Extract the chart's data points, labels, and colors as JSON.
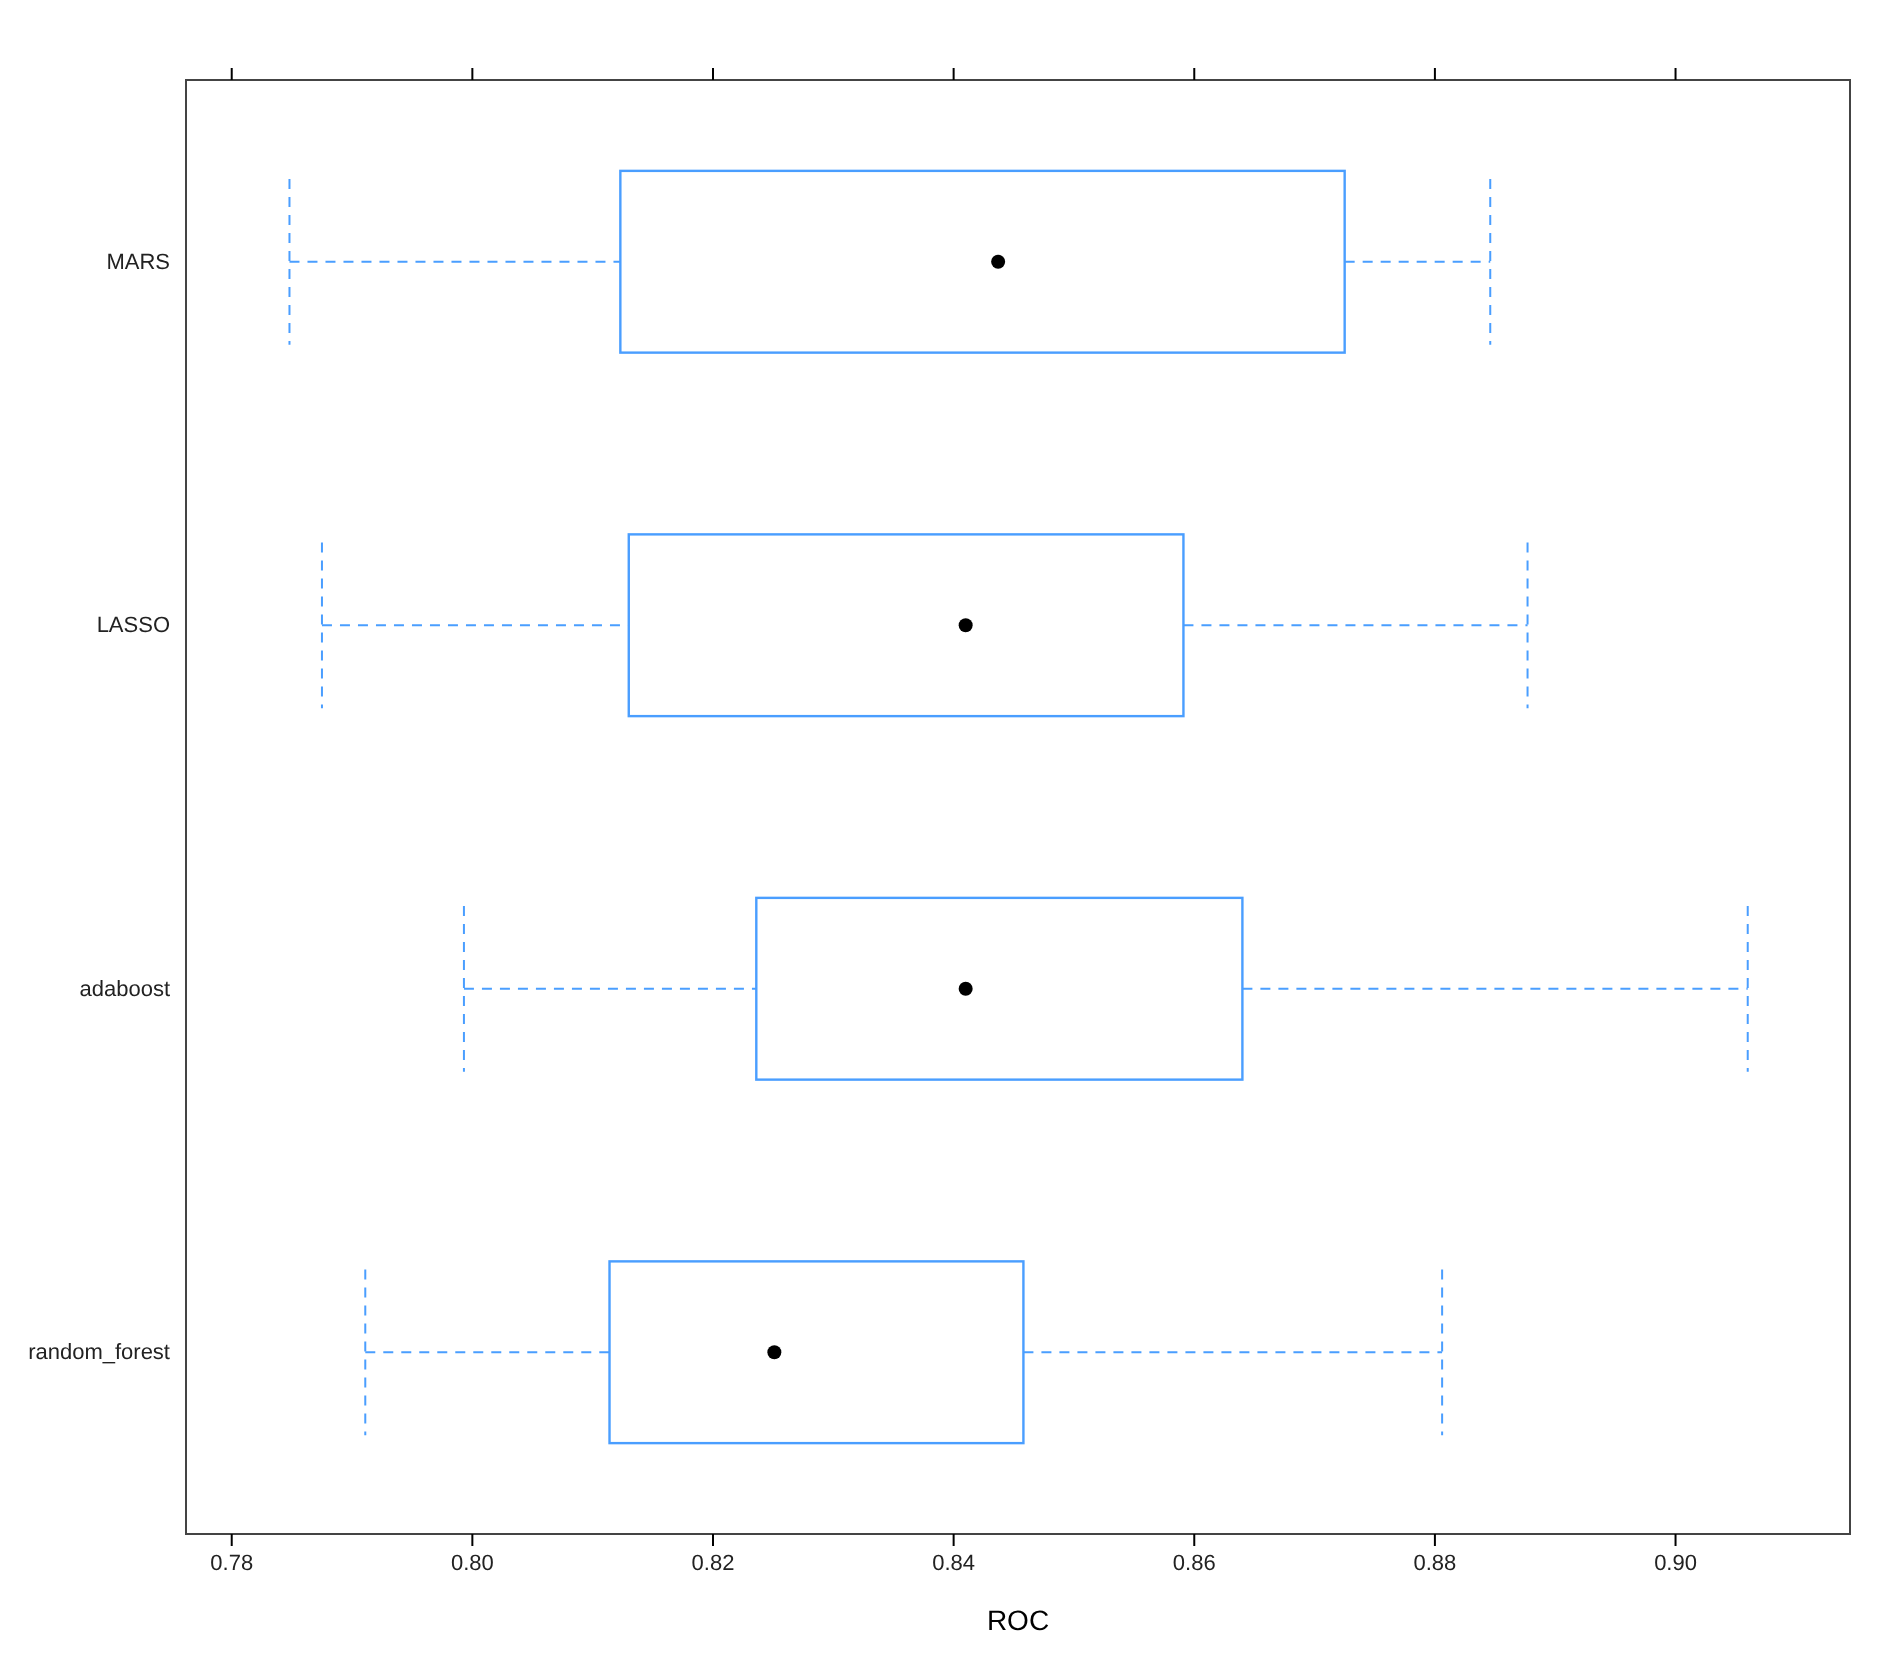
{
  "chart_data": {
    "type": "box",
    "orientation": "horizontal",
    "xlabel": "ROC",
    "categories": [
      "MARS",
      "LASSO",
      "adaboost",
      "random_forest"
    ],
    "color": "#4a9eff",
    "line_style": "dashed",
    "boxes": [
      {
        "low": 0.7848,
        "q1": 0.8123,
        "median": 0.8437,
        "q3": 0.8725,
        "high": 0.8846
      },
      {
        "low": 0.7875,
        "q1": 0.813,
        "median": 0.841,
        "q3": 0.8591,
        "high": 0.8877
      },
      {
        "low": 0.7993,
        "q1": 0.8236,
        "median": 0.841,
        "q3": 0.864,
        "high": 0.906
      },
      {
        "low": 0.7911,
        "q1": 0.8114,
        "median": 0.8251,
        "q3": 0.8458,
        "high": 0.8806
      }
    ],
    "xlim": [
      0.7762,
      0.9145
    ],
    "xticks": [
      {
        "value": 0.78,
        "label": "0.78"
      },
      {
        "value": 0.8,
        "label": "0.80"
      },
      {
        "value": 0.82,
        "label": "0.82"
      },
      {
        "value": 0.84,
        "label": "0.84"
      },
      {
        "value": 0.86,
        "label": "0.86"
      },
      {
        "value": 0.88,
        "label": "0.88"
      },
      {
        "value": 0.9,
        "label": "0.90"
      }
    ]
  }
}
